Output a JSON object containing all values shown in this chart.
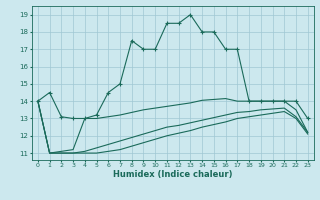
{
  "xlabel": "Humidex (Indice chaleur)",
  "bg_color": "#cce8ee",
  "grid_color": "#a0c8d4",
  "line_color": "#1a6a5a",
  "xlim": [
    -0.5,
    23.5
  ],
  "ylim": [
    10.6,
    19.5
  ],
  "yticks": [
    11,
    12,
    13,
    14,
    15,
    16,
    17,
    18,
    19
  ],
  "xticks": [
    0,
    1,
    2,
    3,
    4,
    5,
    6,
    7,
    8,
    9,
    10,
    11,
    12,
    13,
    14,
    15,
    16,
    17,
    18,
    19,
    20,
    21,
    22,
    23
  ],
  "series1_x": [
    0,
    1,
    2,
    3,
    4,
    5,
    6,
    7,
    8,
    9,
    10,
    11,
    12,
    13,
    14,
    15,
    16,
    17,
    18,
    19,
    20,
    21,
    22,
    23
  ],
  "series1_y": [
    14.0,
    14.5,
    13.1,
    13.0,
    13.0,
    13.2,
    14.5,
    15.0,
    17.5,
    17.0,
    17.0,
    18.5,
    18.5,
    19.0,
    18.0,
    18.0,
    17.0,
    17.0,
    14.0,
    14.0,
    14.0,
    14.0,
    14.0,
    13.0
  ],
  "series2_x": [
    0,
    1,
    2,
    3,
    4,
    5,
    6,
    7,
    8,
    9,
    10,
    11,
    12,
    13,
    14,
    15,
    16,
    17,
    18,
    19,
    20,
    21,
    22,
    23
  ],
  "series2_y": [
    14.0,
    11.0,
    11.1,
    11.2,
    13.0,
    13.0,
    13.1,
    13.2,
    13.35,
    13.5,
    13.6,
    13.7,
    13.8,
    13.9,
    14.05,
    14.1,
    14.15,
    14.0,
    14.0,
    14.0,
    14.0,
    14.0,
    13.5,
    12.2
  ],
  "series3_x": [
    0,
    1,
    2,
    3,
    4,
    5,
    6,
    7,
    8,
    9,
    10,
    11,
    12,
    13,
    14,
    15,
    16,
    17,
    18,
    19,
    20,
    21,
    22,
    23
  ],
  "series3_y": [
    14.0,
    11.0,
    11.0,
    11.0,
    11.1,
    11.3,
    11.5,
    11.7,
    11.9,
    12.1,
    12.3,
    12.5,
    12.6,
    12.75,
    12.9,
    13.05,
    13.2,
    13.35,
    13.4,
    13.5,
    13.55,
    13.6,
    13.1,
    12.2
  ],
  "series4_x": [
    0,
    1,
    2,
    3,
    4,
    5,
    6,
    7,
    8,
    9,
    10,
    11,
    12,
    13,
    14,
    15,
    16,
    17,
    18,
    19,
    20,
    21,
    22,
    23
  ],
  "series4_y": [
    14.0,
    11.0,
    11.0,
    11.0,
    11.0,
    11.0,
    11.1,
    11.2,
    11.4,
    11.6,
    11.8,
    12.0,
    12.15,
    12.3,
    12.5,
    12.65,
    12.8,
    13.0,
    13.1,
    13.2,
    13.3,
    13.4,
    13.0,
    12.1
  ]
}
